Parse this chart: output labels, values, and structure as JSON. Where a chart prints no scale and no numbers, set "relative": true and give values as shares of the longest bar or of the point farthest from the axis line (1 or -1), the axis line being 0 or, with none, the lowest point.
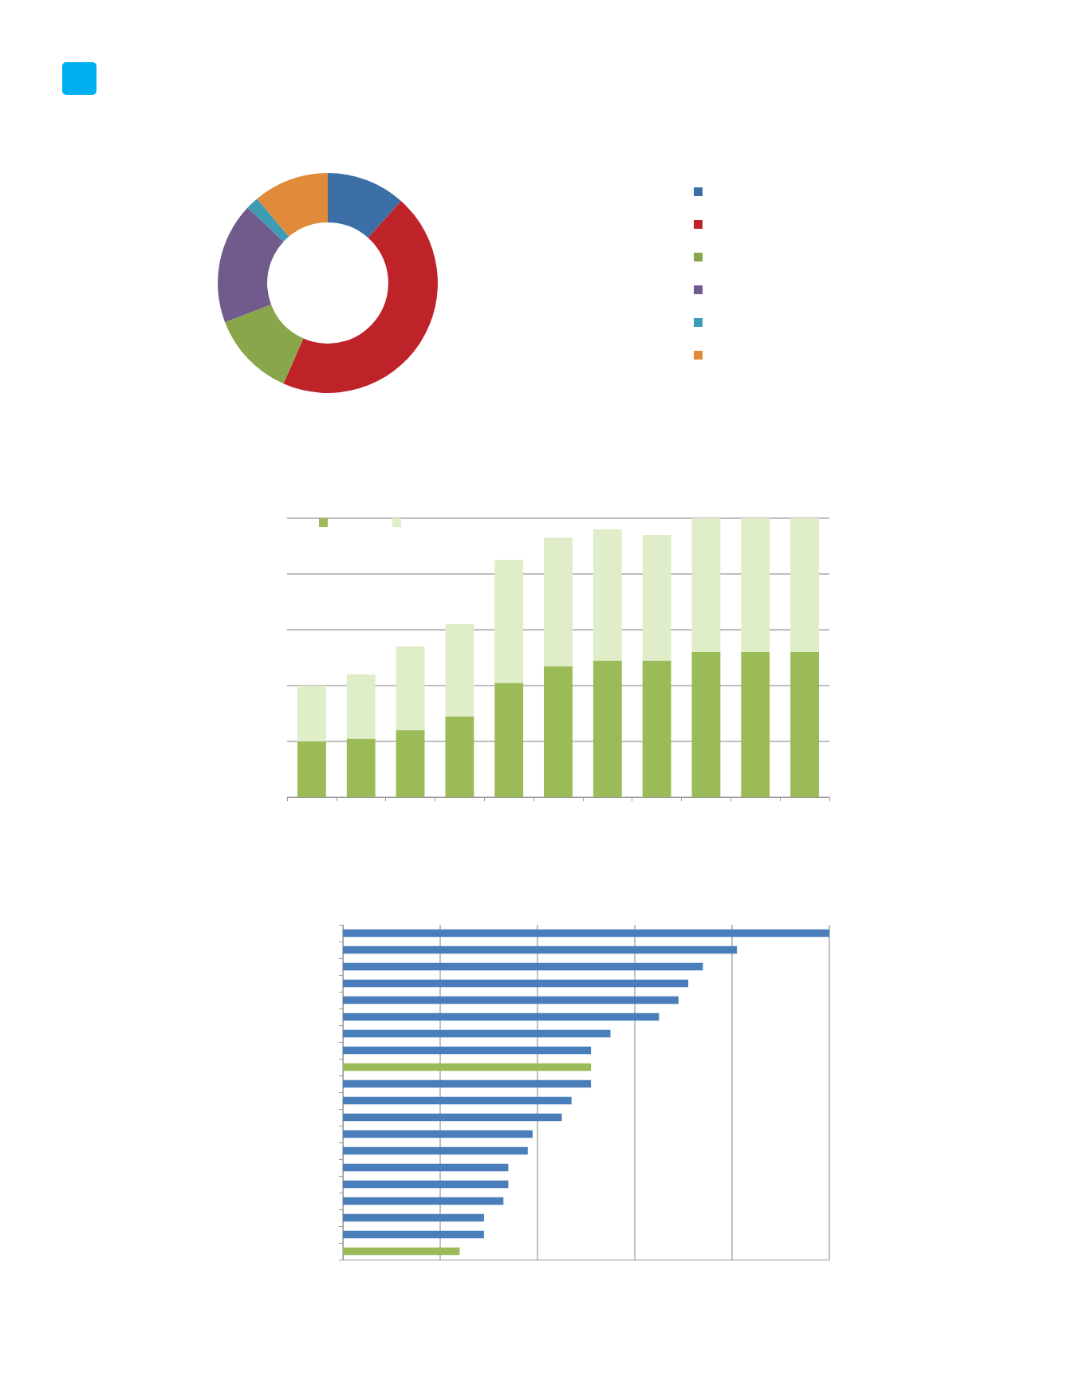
{
  "chart_data": [
    {
      "type": "donut",
      "categories": [
        null,
        null,
        null,
        null,
        null,
        null
      ],
      "values": [
        11.6,
        45,
        12.6,
        17.8,
        1.9,
        11.1
      ],
      "colors": [
        "#3c6fa6",
        "#be2329",
        "#8aa64a",
        "#715a8c",
        "#3d9cb4",
        "#e08a3a"
      ]
    },
    {
      "type": "bar",
      "stacked": true,
      "relative": true,
      "categories": [
        null,
        null,
        null,
        null,
        null,
        null,
        null,
        null,
        null,
        null,
        null
      ],
      "series": [
        {
          "color": "#9bbb59",
          "values": [
            0.2,
            0.21,
            0.24,
            0.29,
            0.41,
            0.47,
            0.49,
            0.49,
            0.52,
            0.52,
            0.52
          ]
        },
        {
          "color": "#dfedc8",
          "values": [
            0.2,
            0.23,
            0.3,
            0.33,
            0.44,
            0.46,
            0.47,
            0.45,
            0.48,
            0.48,
            0.48
          ]
        }
      ],
      "grid": "y"
    },
    {
      "type": "bar",
      "orientation": "horizontal",
      "relative": true,
      "categories": [
        null,
        null,
        null,
        null,
        null,
        null,
        null,
        null,
        null,
        null,
        null,
        null,
        null,
        null,
        null,
        null,
        null,
        null,
        null,
        null
      ],
      "values": [
        1,
        0.81,
        0.74,
        0.71,
        0.69,
        0.65,
        0.55,
        0.51,
        0.51,
        0.51,
        0.47,
        0.45,
        0.39,
        0.38,
        0.34,
        0.34,
        0.33,
        0.29,
        0.29,
        0.24
      ],
      "colors": [
        "#4a7ebb",
        "#4a7ebb",
        "#4a7ebb",
        "#4a7ebb",
        "#4a7ebb",
        "#4a7ebb",
        "#4a7ebb",
        "#4a7ebb",
        "#9bbb59",
        "#4a7ebb",
        "#4a7ebb",
        "#4a7ebb",
        "#4a7ebb",
        "#4a7ebb",
        "#4a7ebb",
        "#4a7ebb",
        "#4a7ebb",
        "#4a7ebb",
        "#4a7ebb",
        "#9bbb59"
      ],
      "grid": "x"
    }
  ]
}
